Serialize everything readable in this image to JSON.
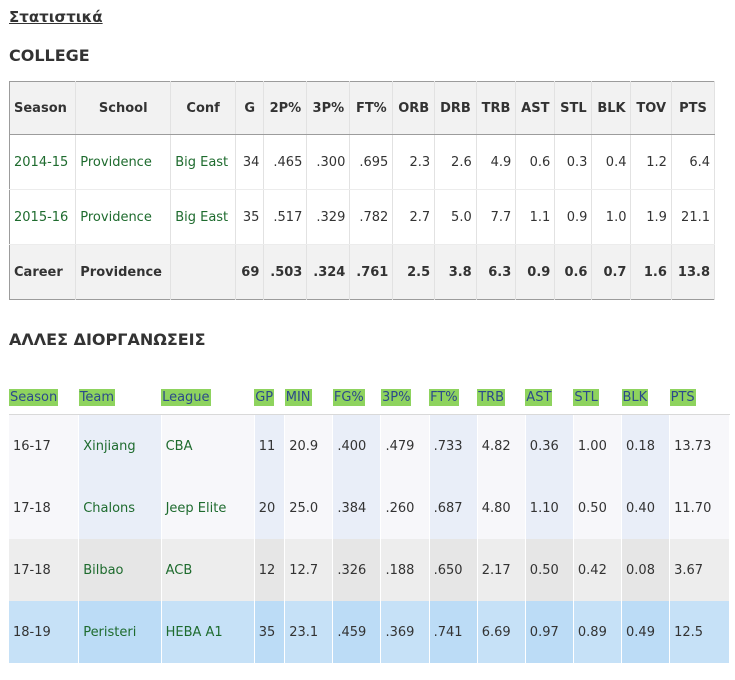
{
  "headings": {
    "stats": "Στατιστικά",
    "college": "COLLEGE",
    "other": "ΑΛΛΕΣ ΔΙΟΡΓΑΝΩΣΕΙΣ"
  },
  "college": {
    "columns": [
      "Season",
      "School",
      "Conf",
      "G",
      "2P%",
      "3P%",
      "FT%",
      "ORB",
      "DRB",
      "TRB",
      "AST",
      "STL",
      "BLK",
      "TOV",
      "PTS"
    ],
    "rows": [
      [
        "2014-15",
        "Providence",
        "Big East",
        "34",
        ".465",
        ".300",
        ".695",
        "2.3",
        "2.6",
        "4.9",
        "0.6",
        "0.3",
        "0.4",
        "1.2",
        "6.4"
      ],
      [
        "2015-16",
        "Providence",
        "Big East",
        "35",
        ".517",
        ".329",
        ".782",
        "2.7",
        "5.0",
        "7.7",
        "1.1",
        "0.9",
        "1.0",
        "1.9",
        "21.1"
      ]
    ],
    "total": [
      "Career",
      "Providence",
      "",
      "69",
      ".503",
      ".324",
      ".761",
      "2.5",
      "3.8",
      "6.3",
      "0.9",
      "0.6",
      "0.7",
      "1.6",
      "13.8"
    ]
  },
  "other": {
    "columns": [
      "Season",
      "Team",
      "League",
      "GP",
      "MIN",
      "FG%",
      "3P%",
      "FT%",
      "TRB",
      "AST",
      "STL",
      "BLK",
      "PTS"
    ],
    "rows": [
      [
        "16-17",
        "Xinjiang",
        "CBA",
        "11",
        "20.9",
        ".400",
        ".479",
        ".733",
        "4.82",
        "0.36",
        "1.00",
        "0.18",
        "13.73"
      ],
      [
        "17-18",
        "Chalons",
        "Jeep Elite",
        "20",
        "25.0",
        ".384",
        ".260",
        ".687",
        "4.80",
        "1.10",
        "0.50",
        "0.40",
        "11.70"
      ],
      [
        "17-18",
        "Bilbao",
        "ACB",
        "12",
        "12.7",
        ".326",
        ".188",
        ".650",
        "2.17",
        "0.50",
        "0.42",
        "0.08",
        "3.67"
      ],
      [
        "18-19",
        "Peristeri",
        "HEBA A1",
        "35",
        "23.1",
        ".459",
        ".369",
        ".741",
        "6.69",
        "0.97",
        "0.89",
        "0.49",
        "12.5"
      ]
    ]
  }
}
